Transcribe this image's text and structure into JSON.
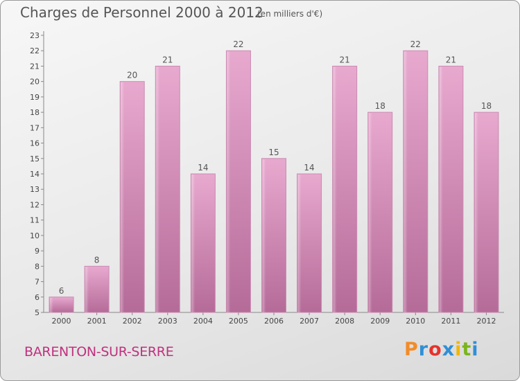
{
  "header": {
    "title": "Charges de Personnel 2000 à 2012",
    "unit": "(en milliers d'€)"
  },
  "footer": {
    "city": "BARENTON-SUR-SERRE",
    "logo": "Proxiti"
  },
  "colors": {
    "bar_light": "#e8a9cf",
    "bar_dark": "#b76b9a",
    "city_text": "#c0317f",
    "logo_letters": [
      "#f28c28",
      "#2f8fd6",
      "#e5322d",
      "#2f8fd6",
      "#f2b705",
      "#7ab51d",
      "#2f8fd6"
    ]
  },
  "chart_data": {
    "type": "bar",
    "title": "Charges de Personnel 2000 à 2012",
    "subtitle": "(en milliers d'€)",
    "categories": [
      "2000",
      "2001",
      "2002",
      "2003",
      "2004",
      "2005",
      "2006",
      "2007",
      "2008",
      "2009",
      "2010",
      "2011",
      "2012"
    ],
    "values": [
      6,
      8,
      20,
      21,
      14,
      22,
      15,
      14,
      21,
      18,
      22,
      21,
      18
    ],
    "ylim": [
      5,
      23
    ],
    "yticks": [
      5,
      6,
      7,
      8,
      9,
      10,
      11,
      12,
      13,
      14,
      15,
      16,
      17,
      18,
      19,
      20,
      21,
      22,
      23
    ],
    "grid": false,
    "data_labels": true
  }
}
